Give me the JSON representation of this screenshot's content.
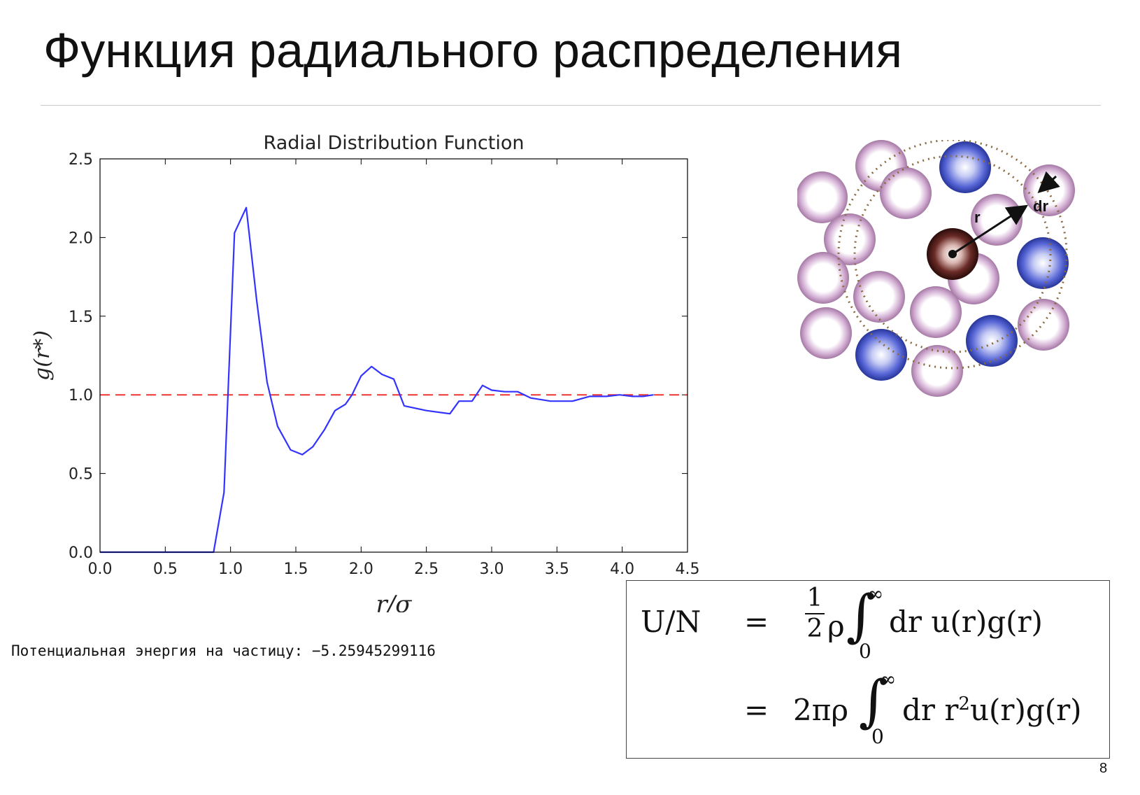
{
  "slide": {
    "title": "Функция радиального распределения",
    "page_number": "8"
  },
  "energy_readout": {
    "label": "Потенциальная энергия на частицу:",
    "value": "−5.25945299116"
  },
  "diagram": {
    "radius_label": "r",
    "shell_label": "dr"
  },
  "formula": {
    "lhs": "U/N",
    "eq1": "=",
    "eq2": "=",
    "frac_num": "1",
    "frac_den": "2",
    "rho": "ρ",
    "two_pi_rho": "2πρ",
    "upper_limit": "∞",
    "lower_limit": "0",
    "integrand1": "dr u(r)g(r)",
    "integrand2_pre": "dr r",
    "integrand2_sup": "2",
    "integrand2_post": "u(r)g(r)"
  },
  "chart_data": {
    "type": "line",
    "title": "Radial Distribution Function",
    "xlabel": "r/σ",
    "ylabel": "g(r*)",
    "xlim": [
      0.0,
      4.5
    ],
    "ylim": [
      0.0,
      2.5
    ],
    "xticks": [
      "0.0",
      "0.5",
      "1.0",
      "1.5",
      "2.0",
      "2.5",
      "3.0",
      "3.5",
      "4.0",
      "4.5"
    ],
    "yticks": [
      "0.0",
      "0.5",
      "1.0",
      "1.5",
      "2.0",
      "2.5"
    ],
    "grid": false,
    "reference_line": {
      "y": 1.0,
      "color": "#ee3333",
      "style": "dashed"
    },
    "series": [
      {
        "color": "#3333ff",
        "x": [
          0.0,
          0.87,
          0.95,
          1.03,
          1.12,
          1.2,
          1.28,
          1.36,
          1.46,
          1.55,
          1.63,
          1.72,
          1.8,
          1.88,
          1.93,
          2.0,
          2.08,
          2.16,
          2.25,
          2.33,
          2.5,
          2.68,
          2.75,
          2.85,
          2.93,
          3.0,
          3.1,
          3.2,
          3.3,
          3.45,
          3.62,
          3.75,
          3.88,
          3.98,
          4.08,
          4.16,
          4.24
        ],
        "y": [
          0.0,
          0.0,
          0.38,
          2.03,
          2.19,
          1.6,
          1.08,
          0.8,
          0.65,
          0.62,
          0.67,
          0.78,
          0.9,
          0.94,
          1.0,
          1.12,
          1.18,
          1.13,
          1.1,
          0.93,
          0.9,
          0.88,
          0.96,
          0.96,
          1.06,
          1.03,
          1.02,
          1.02,
          0.98,
          0.96,
          0.96,
          0.99,
          0.99,
          1.0,
          0.99,
          0.99,
          1.0
        ]
      }
    ]
  },
  "colors": {
    "purple_particle": "#b88ab8",
    "blue_particle": "#3a4ec0",
    "central_particle": "#5a2020",
    "shell_dots": "#8b6a3e"
  }
}
